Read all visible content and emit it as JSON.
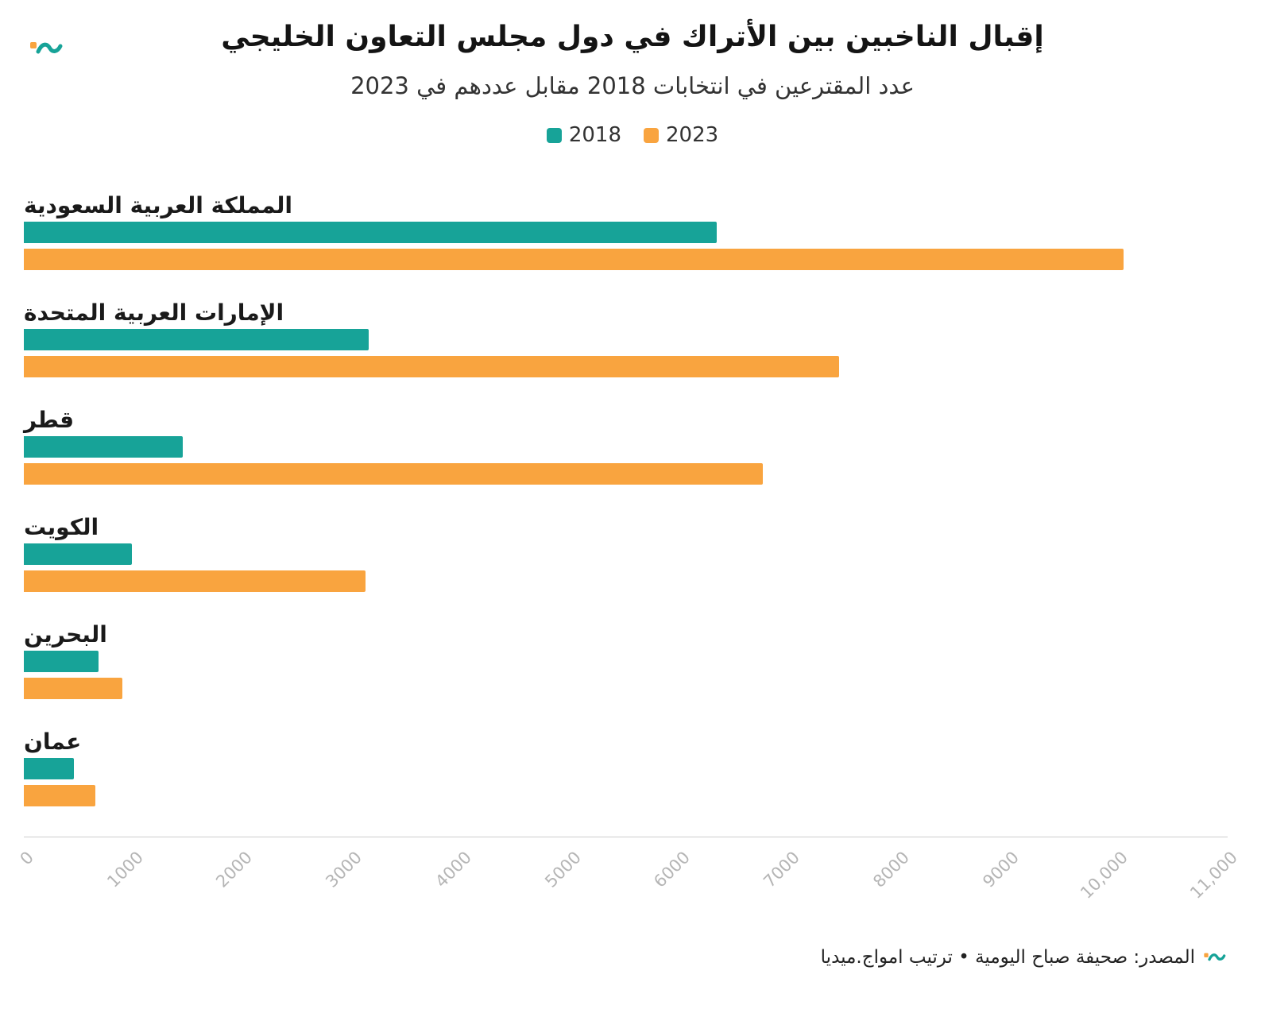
{
  "header": {
    "title": "إقبال الناخبين بين الأتراك في دول مجلس التعاون الخليجي",
    "subtitle": "عدد المقترعين في انتخابات 2018 مقابل عددهم في 2023"
  },
  "legend": [
    {
      "label": "2018",
      "color": "#17A398"
    },
    {
      "label": "2023",
      "color": "#F9A43F"
    }
  ],
  "chart_data": {
    "type": "bar",
    "orientation": "horizontal",
    "title": "إقبال الناخبين بين الأتراك في دول مجلس التعاون الخليجي",
    "subtitle": "عدد المقترعين في انتخابات 2018 مقابل عددهم في 2023",
    "categories": [
      "المملكة العربية السعودية",
      "الإمارات العربية المتحدة",
      "قطر",
      "الكويت",
      "البحرين",
      "عمان"
    ],
    "series": [
      {
        "name": "2018",
        "color": "#17A398",
        "values": [
          6330,
          3150,
          1450,
          990,
          680,
          460
        ]
      },
      {
        "name": "2023",
        "color": "#F9A43F",
        "values": [
          10050,
          7450,
          6750,
          3120,
          900,
          650
        ]
      }
    ],
    "xlim": [
      0,
      11000
    ],
    "xticks": [
      0,
      1000,
      2000,
      3000,
      4000,
      5000,
      6000,
      7000,
      8000,
      9000,
      10000,
      11000
    ],
    "xtick_labels": [
      "0",
      "1000",
      "2000",
      "3000",
      "4000",
      "5000",
      "6000",
      "7000",
      "8000",
      "9000",
      "10,000",
      "11,000"
    ],
    "legend_position": "top",
    "grid": false
  },
  "footer": {
    "source": "المصدر: صحيفة صباح اليومية • ترتيب امواج.ميديا"
  },
  "colors": {
    "teal": "#17A398",
    "orange": "#F9A43F",
    "axis_line": "#cccccc",
    "tick_label": "#b5b5b5",
    "title_text": "#141414"
  }
}
